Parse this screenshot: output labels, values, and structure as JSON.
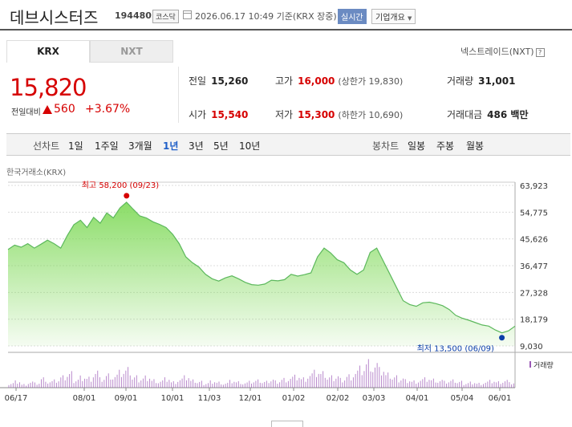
{
  "header": {
    "name": "데브시스터즈",
    "code": "194480",
    "market": "코스닥",
    "date": "2026.06.17 10:49 기준(KRX 장중)",
    "realtime": "실시간",
    "info_button": "기업개요"
  },
  "tabs": {
    "krx": "KRX",
    "nxt": "NXT",
    "nextrade": "넥스트레이드(NXT)",
    "help": "?"
  },
  "price": {
    "current": "15,820",
    "change_label": "전일대비",
    "change": "560",
    "change_pct": "+3.67%"
  },
  "metrics": {
    "prev_label": "전일",
    "prev": "15,260",
    "high_label": "고가",
    "high": "16,000",
    "upper_limit": "(상한가 19,830)",
    "volume_label": "거래량",
    "volume": "31,001",
    "open_label": "시가",
    "open": "15,540",
    "low_label": "저가",
    "low": "15,300",
    "lower_limit": "(하한가 10,690)",
    "amount_label": "거래대금",
    "amount": "486 백만"
  },
  "period_bar": {
    "line_label": "선차트",
    "periods": [
      "1일",
      "1주일",
      "3개월",
      "1년",
      "3년",
      "5년",
      "10년"
    ],
    "active": "1년",
    "candle_label": "봉차트",
    "candles": [
      "일봉",
      "주봉",
      "월봉"
    ]
  },
  "source": "한국거래소(KRX)",
  "volume_legend": "거래량",
  "colors": {
    "up": "#d60000",
    "down": "#0b3fa8",
    "area": "#7ed957",
    "volume": "#9b59b6",
    "active": "#1f5fc8"
  },
  "chart_data": {
    "type": "area",
    "y_ticks": [
      "63,923",
      "54,775",
      "45,626",
      "36,477",
      "27,328",
      "18,179",
      "9,030"
    ],
    "ylim": [
      9030,
      63923
    ],
    "x_ticks": [
      "06/17",
      "08/01",
      "09/01",
      "10/01",
      "11/03",
      "12/01",
      "01/02",
      "02/02",
      "03/03",
      "04/01",
      "05/04",
      "06/01"
    ],
    "high_annotation": "최고 58,200 (09/23)",
    "low_annotation": "최저 13,500 (06/09)",
    "values": [
      42000,
      43500,
      42800,
      44000,
      42500,
      43800,
      45200,
      44000,
      42500,
      46800,
      50500,
      52000,
      49500,
      53000,
      51000,
      54500,
      52800,
      56200,
      58200,
      55800,
      53500,
      52800,
      51500,
      50600,
      49500,
      47200,
      44000,
      39500,
      37500,
      36000,
      33500,
      32000,
      31200,
      32300,
      33000,
      32000,
      30800,
      30000,
      29800,
      30200,
      31500,
      31300,
      31700,
      33500,
      32900,
      33400,
      34000,
      39500,
      42500,
      40800,
      38500,
      37500,
      35000,
      33500,
      35000,
      41000,
      42500,
      38000,
      33500,
      29000,
      24500,
      23200,
      22600,
      23800,
      24000,
      23500,
      22800,
      21500,
      19500,
      18500,
      17800,
      17000,
      16200,
      15800,
      14500,
      13500,
      14200,
      15820
    ],
    "volume": [
      4,
      6,
      3,
      5,
      4,
      8,
      5,
      6,
      9,
      12,
      7,
      10,
      9,
      14,
      8,
      11,
      10,
      13,
      15,
      9,
      8,
      10,
      7,
      6,
      8,
      5,
      7,
      9,
      6,
      5,
      4,
      6,
      5,
      4,
      6,
      5,
      4,
      5,
      6,
      5,
      7,
      6,
      8,
      9,
      10,
      8,
      11,
      13,
      12,
      9,
      10,
      8,
      11,
      14,
      17,
      22,
      19,
      15,
      11,
      9,
      8,
      7,
      6,
      7,
      8,
      7,
      6,
      5,
      6,
      5,
      4,
      5,
      4,
      5,
      6,
      5,
      6,
      4
    ]
  }
}
